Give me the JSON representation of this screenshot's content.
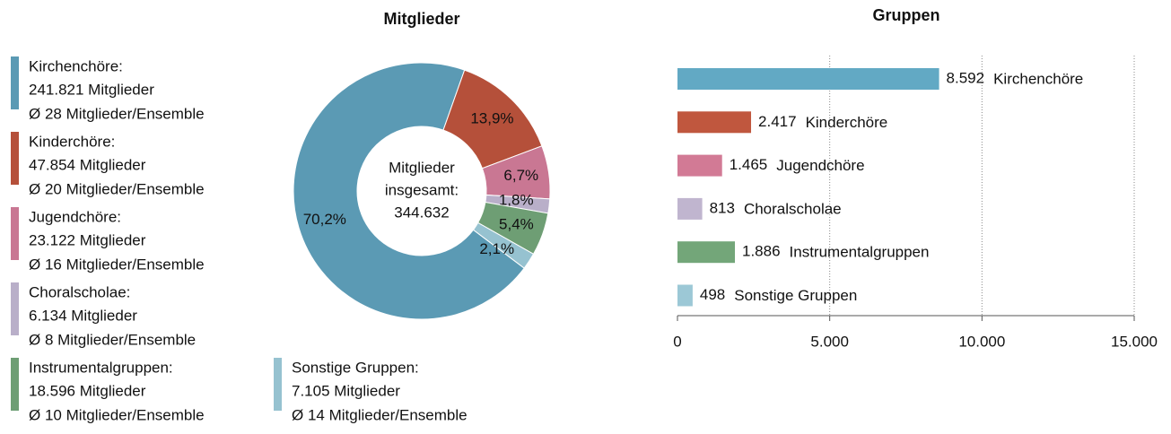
{
  "chart_data": [
    {
      "type": "pie",
      "title": "Mitglieder",
      "categories": [
        "Kirchenchöre:",
        "Kinderchöre:",
        "Jugendchöre:",
        "Choralscholae:",
        "Instrumentalgruppen:",
        "Sonstige Gruppen:"
      ],
      "members": [
        "241.821 Mitglieder",
        "47.854 Mitglieder",
        "23.122 Mitglieder",
        "6.134 Mitglieder",
        "18.596 Mitglieder",
        "7.105 Mitglieder"
      ],
      "averages": [
        "Ø 28 Mitglieder/Ensemble",
        "Ø 20 Mitglieder/Ensemble",
        "Ø 16 Mitglieder/Ensemble",
        "Ø 8 Mitglieder/Ensemble",
        "Ø 10 Mitglieder/Ensemble",
        "Ø 14 Mitglieder/Ensemble"
      ],
      "values": [
        70.2,
        13.9,
        6.7,
        1.8,
        5.4,
        2.1
      ],
      "value_labels": [
        "70,2%",
        "13,9%",
        "6,7%",
        "1,8%",
        "5,4%",
        "2,1%"
      ],
      "colors": [
        "#5b9ab4",
        "#b5503a",
        "#c97793",
        "#b9afc9",
        "#6e9e74",
        "#96c2d0"
      ],
      "center_label": [
        "Mitglieder",
        "insgesamt:",
        "344.632"
      ]
    },
    {
      "type": "bar",
      "orientation": "horizontal",
      "title": "Gruppen",
      "categories": [
        "Kirchenchöre",
        "Kinderchöre",
        "Jugendchöre",
        "Choralscholae",
        "Instrumentalgruppen",
        "Sonstige Gruppen"
      ],
      "values": [
        8592,
        2417,
        1465,
        813,
        1886,
        498
      ],
      "value_labels": [
        "8.592",
        "2.417",
        "1.465",
        "813",
        "1.886",
        "498"
      ],
      "colors": [
        "#62a9c4",
        "#c0573e",
        "#d27a95",
        "#c0b5cf",
        "#73a679",
        "#9cc8d6"
      ],
      "xlim": [
        0,
        15000
      ],
      "xticks": [
        0,
        {
          "value": 5000,
          "label": "5.000"
        },
        {
          "value": 10000,
          "label": "10.000"
        },
        {
          "value": 15000,
          "label": "15.000"
        }
      ],
      "grid": true
    }
  ]
}
